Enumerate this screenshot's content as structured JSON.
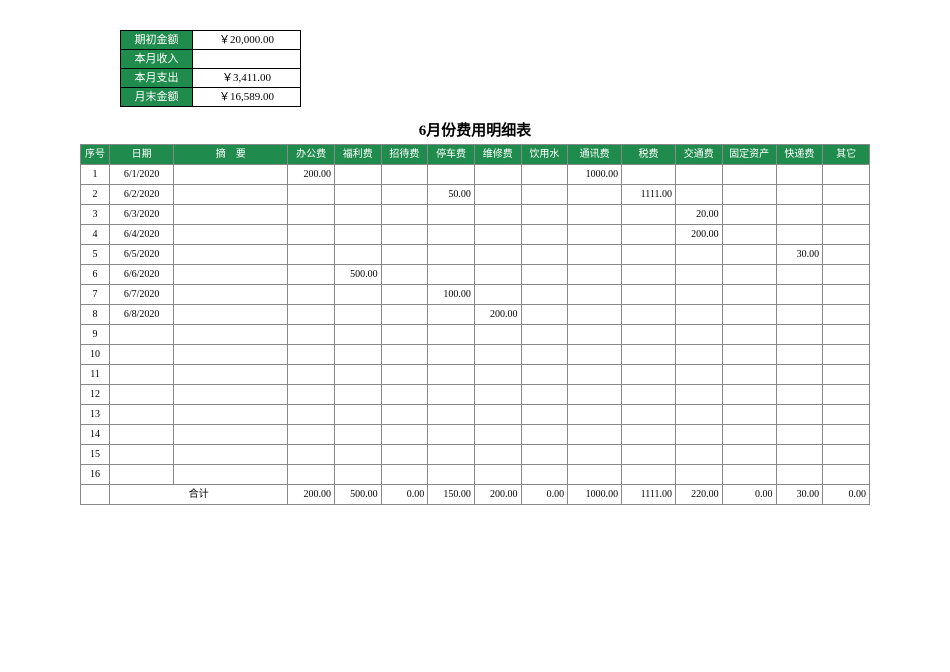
{
  "summary": {
    "rows": [
      {
        "label": "期初金额",
        "value": "￥20,000.00"
      },
      {
        "label": "本月收入",
        "value": ""
      },
      {
        "label": "本月支出",
        "value": "￥3,411.00"
      },
      {
        "label": "月末金额",
        "value": "￥16,589.00"
      }
    ],
    "label_bg": "#1f8b4c",
    "label_color": "#ffffff",
    "value_bg": "#ffffff"
  },
  "title": "6月份费用明细表",
  "detail": {
    "header_bg": "#1f8b4c",
    "header_color": "#ffffff",
    "columns": [
      "序号",
      "日期",
      "摘　要",
      "办公费",
      "福利费",
      "招待费",
      "停车费",
      "维修费",
      "饮用水",
      "通讯费",
      "税费",
      "交通费",
      "固定资产",
      "快递费",
      "其它"
    ],
    "rows": [
      {
        "seq": "1",
        "date": "6/1/2020",
        "summary": "",
        "vals": [
          "200.00",
          "",
          "",
          "",
          "",
          "",
          "1000.00",
          "",
          "",
          "",
          "",
          ""
        ]
      },
      {
        "seq": "2",
        "date": "6/2/2020",
        "summary": "",
        "vals": [
          "",
          "",
          "",
          "50.00",
          "",
          "",
          "",
          "1111.00",
          "",
          "",
          "",
          ""
        ]
      },
      {
        "seq": "3",
        "date": "6/3/2020",
        "summary": "",
        "vals": [
          "",
          "",
          "",
          "",
          "",
          "",
          "",
          "",
          "20.00",
          "",
          "",
          ""
        ]
      },
      {
        "seq": "4",
        "date": "6/4/2020",
        "summary": "",
        "vals": [
          "",
          "",
          "",
          "",
          "",
          "",
          "",
          "",
          "200.00",
          "",
          "",
          ""
        ]
      },
      {
        "seq": "5",
        "date": "6/5/2020",
        "summary": "",
        "vals": [
          "",
          "",
          "",
          "",
          "",
          "",
          "",
          "",
          "",
          "",
          "30.00",
          ""
        ]
      },
      {
        "seq": "6",
        "date": "6/6/2020",
        "summary": "",
        "vals": [
          "",
          "500.00",
          "",
          "",
          "",
          "",
          "",
          "",
          "",
          "",
          "",
          ""
        ]
      },
      {
        "seq": "7",
        "date": "6/7/2020",
        "summary": "",
        "vals": [
          "",
          "",
          "",
          "100.00",
          "",
          "",
          "",
          "",
          "",
          "",
          "",
          ""
        ]
      },
      {
        "seq": "8",
        "date": "6/8/2020",
        "summary": "",
        "vals": [
          "",
          "",
          "",
          "",
          "200.00",
          "",
          "",
          "",
          "",
          "",
          "",
          ""
        ]
      },
      {
        "seq": "9",
        "date": "",
        "summary": "",
        "vals": [
          "",
          "",
          "",
          "",
          "",
          "",
          "",
          "",
          "",
          "",
          "",
          ""
        ]
      },
      {
        "seq": "10",
        "date": "",
        "summary": "",
        "vals": [
          "",
          "",
          "",
          "",
          "",
          "",
          "",
          "",
          "",
          "",
          "",
          ""
        ]
      },
      {
        "seq": "11",
        "date": "",
        "summary": "",
        "vals": [
          "",
          "",
          "",
          "",
          "",
          "",
          "",
          "",
          "",
          "",
          "",
          ""
        ]
      },
      {
        "seq": "12",
        "date": "",
        "summary": "",
        "vals": [
          "",
          "",
          "",
          "",
          "",
          "",
          "",
          "",
          "",
          "",
          "",
          ""
        ]
      },
      {
        "seq": "13",
        "date": "",
        "summary": "",
        "vals": [
          "",
          "",
          "",
          "",
          "",
          "",
          "",
          "",
          "",
          "",
          "",
          ""
        ]
      },
      {
        "seq": "14",
        "date": "",
        "summary": "",
        "vals": [
          "",
          "",
          "",
          "",
          "",
          "",
          "",
          "",
          "",
          "",
          "",
          ""
        ]
      },
      {
        "seq": "15",
        "date": "",
        "summary": "",
        "vals": [
          "",
          "",
          "",
          "",
          "",
          "",
          "",
          "",
          "",
          "",
          "",
          ""
        ]
      },
      {
        "seq": "16",
        "date": "",
        "summary": "",
        "vals": [
          "",
          "",
          "",
          "",
          "",
          "",
          "",
          "",
          "",
          "",
          "",
          ""
        ]
      }
    ],
    "total_label": "合计",
    "totals": [
      "200.00",
      "500.00",
      "0.00",
      "150.00",
      "200.00",
      "0.00",
      "1000.00",
      "1111.00",
      "220.00",
      "0.00",
      "30.00",
      "0.00"
    ]
  }
}
